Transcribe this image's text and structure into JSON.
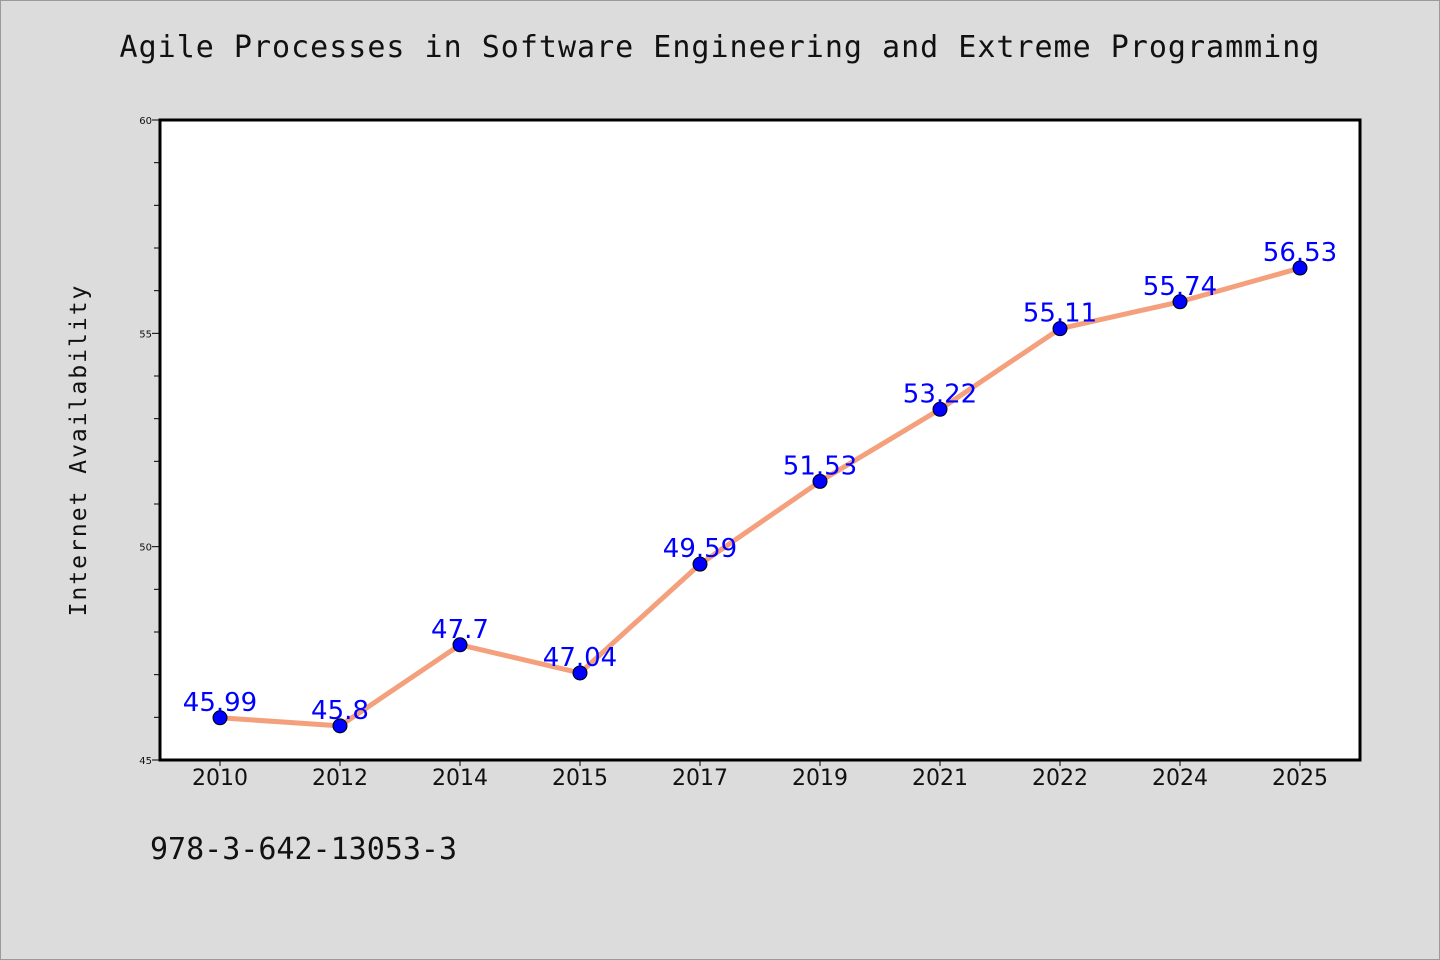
{
  "chart_data": {
    "type": "line",
    "title": "Agile Processes in Software Engineering and Extreme Programming",
    "xlabel": "",
    "ylabel": "Internet Availability",
    "categories": [
      "2010",
      "2012",
      "2014",
      "2015",
      "2017",
      "2019",
      "2021",
      "2022",
      "2024",
      "2025"
    ],
    "series": [
      {
        "values": [
          45.99,
          45.8,
          47.7,
          47.04,
          49.59,
          51.53,
          53.22,
          55.11,
          55.74,
          56.53
        ],
        "labels": [
          "45.99",
          "45.8",
          "47.7",
          "47.04",
          "49.59",
          "51.53",
          "53.22",
          "55.11",
          "55.74",
          "56.53"
        ],
        "line_color": "#f4a07c",
        "marker_color": "#0000ff"
      }
    ],
    "ylim": [
      45,
      60
    ],
    "yticks": [
      "45",
      "50",
      "55",
      "60"
    ],
    "grid": false
  },
  "footer": {
    "isbn": "978-3-642-13053-3"
  }
}
